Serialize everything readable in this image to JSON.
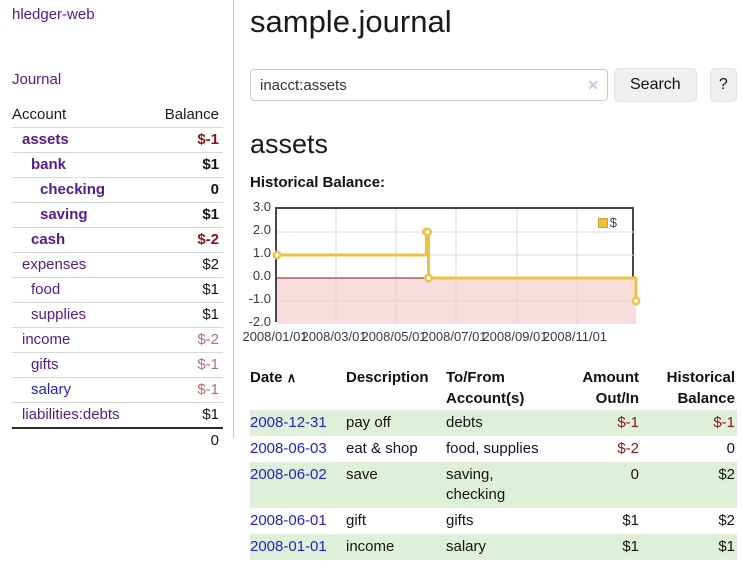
{
  "sidebar": {
    "brand": "hledger-web",
    "nav": [
      {
        "label": "Journal"
      }
    ],
    "accounts_table": {
      "headers": {
        "account": "Account",
        "balance": "Balance"
      },
      "rows": [
        {
          "name": "assets",
          "indent": 0,
          "bold": true,
          "blue": false,
          "balance": "$-1",
          "balance_class": "bal-neg-strong"
        },
        {
          "name": "bank",
          "indent": 1,
          "bold": true,
          "blue": false,
          "balance": "$1",
          "balance_class": ""
        },
        {
          "name": "checking",
          "indent": 2,
          "bold": true,
          "blue": false,
          "balance": "0",
          "balance_class": ""
        },
        {
          "name": "saving",
          "indent": 2,
          "bold": true,
          "blue": false,
          "balance": "$1",
          "balance_class": ""
        },
        {
          "name": "cash",
          "indent": 1,
          "bold": true,
          "blue": false,
          "balance": "$-2",
          "balance_class": "bal-neg-strong"
        },
        {
          "name": "expenses",
          "indent": 0,
          "bold": false,
          "blue": false,
          "balance": "$2",
          "balance_class": ""
        },
        {
          "name": "food",
          "indent": 1,
          "bold": false,
          "blue": false,
          "balance": "$1",
          "balance_class": ""
        },
        {
          "name": "supplies",
          "indent": 1,
          "bold": false,
          "blue": false,
          "balance": "$1",
          "balance_class": ""
        },
        {
          "name": "income",
          "indent": 0,
          "bold": false,
          "blue": false,
          "balance": "$-2",
          "balance_class": "bal-neg-muted"
        },
        {
          "name": "gifts",
          "indent": 1,
          "bold": false,
          "blue": false,
          "balance": "$-1",
          "balance_class": "bal-neg-muted"
        },
        {
          "name": "salary",
          "indent": 1,
          "bold": false,
          "blue": true,
          "balance": "$-1",
          "balance_class": "bal-neg-muted"
        },
        {
          "name": "liabilities:debts",
          "indent": 0,
          "bold": false,
          "blue": false,
          "balance": "$1",
          "balance_class": ""
        }
      ],
      "total": "0"
    }
  },
  "main": {
    "title": "sample.journal",
    "search": {
      "value": "inacct:assets",
      "clear_icon": "✕",
      "button_label": "Search",
      "help_label": "?"
    },
    "account_heading": "assets",
    "chart_label": "Historical Balance:"
  },
  "chart_data": {
    "type": "line",
    "title": "Historical Balance",
    "steps": true,
    "grid": true,
    "legend_position": "top-right",
    "legend": [
      {
        "label": "$",
        "color": "#edc240"
      }
    ],
    "xlim": [
      "2008/01/01",
      "2008/12/31"
    ],
    "ylim": [
      -2,
      3
    ],
    "y_ticks": [
      {
        "v": 3,
        "label": "3.0"
      },
      {
        "v": 2,
        "label": "2.0"
      },
      {
        "v": 1,
        "label": "1.0"
      },
      {
        "v": 0,
        "label": "0.0"
      },
      {
        "v": -1,
        "label": "-1.0"
      },
      {
        "v": -2,
        "label": "-2.0"
      }
    ],
    "x_ticks": [
      {
        "date": "2008/01/01",
        "label": "2008/01/01"
      },
      {
        "date": "2008/03/01",
        "label": "2008/03/01"
      },
      {
        "date": "2008/05/01",
        "label": "2008/05/01"
      },
      {
        "date": "2008/07/01",
        "label": "2008/07/01"
      },
      {
        "date": "2008/09/01",
        "label": "2008/09/01"
      },
      {
        "date": "2008/11/01",
        "label": "2008/11/01"
      }
    ],
    "series": [
      {
        "name": "$",
        "color": "#edc240",
        "points": [
          [
            "2008/01/01",
            1
          ],
          [
            "2008/06/01",
            2
          ],
          [
            "2008/06/02",
            2
          ],
          [
            "2008/06/03",
            0
          ],
          [
            "2008/12/31",
            -1
          ]
        ]
      }
    ],
    "negative_region_color": "#f9dcdc",
    "zero_line_color": "#8b1a1a",
    "grid_color": "#d9d9d9"
  },
  "transactions_table": {
    "headers": {
      "date": "Date",
      "sort_icon": "∧",
      "description": "Description",
      "accounts": "To/From Account(s)",
      "amount": "Amount Out/In",
      "balance": "Historical Balance"
    },
    "rows": [
      {
        "date": "2008-12-31",
        "description": "pay off",
        "accounts": "debts",
        "amount": "$-1",
        "amount_negative": true,
        "balance": "$-1",
        "balance_negative": true,
        "highlighted": true
      },
      {
        "date": "2008-06-03",
        "description": "eat & shop",
        "accounts": "food, supplies",
        "amount": "$-2",
        "amount_negative": true,
        "balance": "0",
        "balance_negative": false,
        "highlighted": false
      },
      {
        "date": "2008-06-02",
        "description": "save",
        "accounts": "saving, checking",
        "amount": "0",
        "amount_negative": false,
        "balance": "$2",
        "balance_negative": false,
        "highlighted": true
      },
      {
        "date": "2008-06-01",
        "description": "gift",
        "accounts": "gifts",
        "amount": "$1",
        "amount_negative": false,
        "balance": "$2",
        "balance_negative": false,
        "highlighted": false
      },
      {
        "date": "2008-01-01",
        "description": "income",
        "accounts": "salary",
        "amount": "$1",
        "amount_negative": false,
        "balance": "$1",
        "balance_negative": false,
        "highlighted": true
      }
    ]
  },
  "colors": {
    "link_purple": "#551a8b",
    "link_blue": "#2222cc",
    "negative_strong": "#8f1519",
    "negative_muted": "#b4706e",
    "row_highlight_green": "#dff0d8",
    "series_gold": "#edc240"
  }
}
